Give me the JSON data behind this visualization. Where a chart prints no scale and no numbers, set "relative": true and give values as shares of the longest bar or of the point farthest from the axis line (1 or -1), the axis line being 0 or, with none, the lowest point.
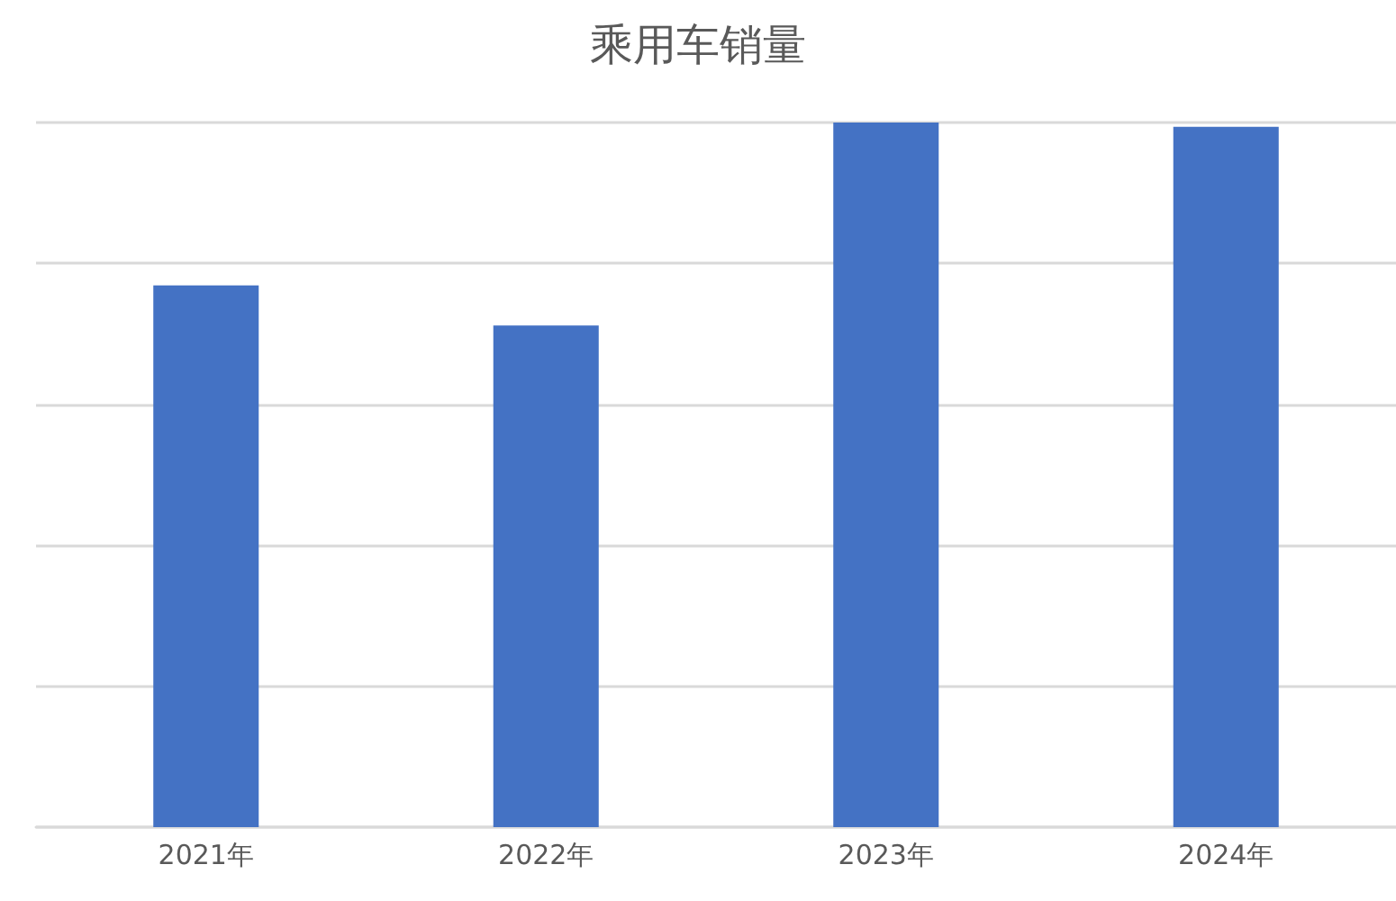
{
  "chart_data": {
    "type": "bar",
    "title": "乘用车销量",
    "categories": [
      "2021年",
      "2022年",
      "2023年",
      "2024年"
    ],
    "values": [
      0.769,
      0.712,
      1,
      0.994
    ],
    "color": "#4472c4",
    "relative": true,
    "grid": true
  }
}
